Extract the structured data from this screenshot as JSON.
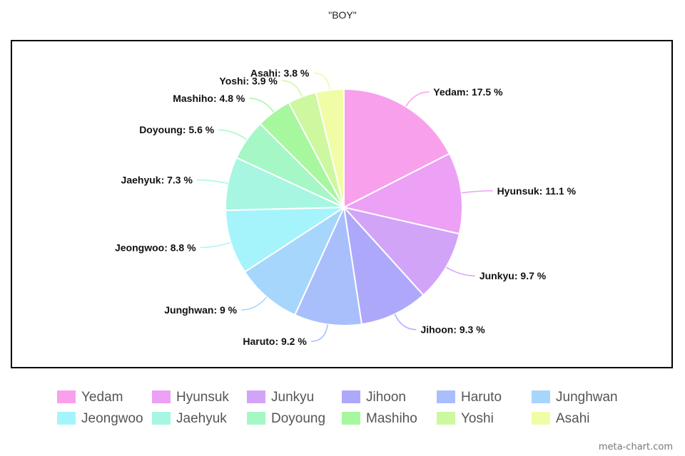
{
  "title": "\"BOY\"",
  "watermark": "meta-chart.com",
  "chart_data": {
    "type": "pie",
    "title": "\"BOY\"",
    "slices": [
      {
        "name": "Yedam",
        "value": 17.5,
        "label": "Yedam: 17.5 %",
        "color": "#f9a0ec"
      },
      {
        "name": "Hyunsuk",
        "value": 11.1,
        "label": "Hyunsuk: 11.1 %",
        "color": "#eca0f6"
      },
      {
        "name": "Junkyu",
        "value": 9.7,
        "label": "Junkyu: 9.7 %",
        "color": "#d2a4f8"
      },
      {
        "name": "Jihoon",
        "value": 9.3,
        "label": "Jihoon: 9.3 %",
        "color": "#aea8fb"
      },
      {
        "name": "Haruto",
        "value": 9.2,
        "label": "Haruto: 9.2 %",
        "color": "#a9bffb"
      },
      {
        "name": "Junghwan",
        "value": 9,
        "label": "Junghwan: 9 %",
        "color": "#a6d6fb"
      },
      {
        "name": "Jeongwoo",
        "value": 8.8,
        "label": "Jeongwoo: 8.8 %",
        "color": "#a6f4fb"
      },
      {
        "name": "Jaehyuk",
        "value": 7.3,
        "label": "Jaehyuk: 7.3 %",
        "color": "#a6f6e2"
      },
      {
        "name": "Doyoung",
        "value": 5.6,
        "label": "Doyoung: 5.6 %",
        "color": "#a6f7c6"
      },
      {
        "name": "Mashiho",
        "value": 4.8,
        "label": "Mashiho: 4.8 %",
        "color": "#a6f79e"
      },
      {
        "name": "Yoshi",
        "value": 3.9,
        "label": "Yoshi: 3.9 %",
        "color": "#cdf8a0"
      },
      {
        "name": "Asahi",
        "value": 3.8,
        "label": "Asahi: 3.8 %",
        "color": "#f1fca6"
      }
    ],
    "legend_position": "bottom",
    "start_angle": "top, clockwise"
  }
}
